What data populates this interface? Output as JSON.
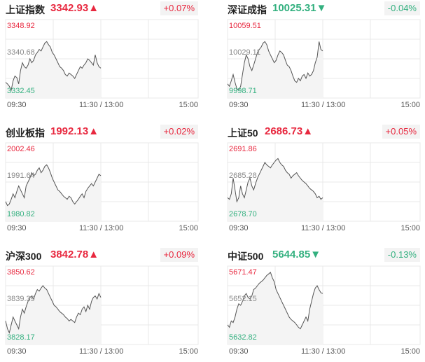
{
  "indices": [
    {
      "name": "上证指数",
      "value": "3342.93",
      "arrow": "▲",
      "dir": "up",
      "pct": "+0.07%",
      "high": "3348.92",
      "mid": "3340.68",
      "low": "3332.45",
      "series": [
        0.2,
        0.18,
        0.15,
        0.1,
        0.22,
        0.28,
        0.26,
        0.18,
        0.35,
        0.45,
        0.4,
        0.38,
        0.42,
        0.5,
        0.45,
        0.48,
        0.55,
        0.58,
        0.62,
        0.6,
        0.65,
        0.7,
        0.72,
        0.68,
        0.65,
        0.58,
        0.55,
        0.5,
        0.45,
        0.4,
        0.38,
        0.35,
        0.3,
        0.28,
        0.32,
        0.3,
        0.28,
        0.25,
        0.3,
        0.35,
        0.4,
        0.38,
        0.42,
        0.45,
        0.5,
        0.48,
        0.45,
        0.42,
        0.55,
        0.45,
        0.4,
        0.38
      ]
    },
    {
      "name": "深证成指",
      "value": "10025.31",
      "arrow": "▼",
      "dir": "down",
      "pct": "-0.04%",
      "high": "10059.51",
      "mid": "10029.11",
      "low": "9998.71",
      "series": [
        0.18,
        0.15,
        0.22,
        0.3,
        0.2,
        0.12,
        0.1,
        0.15,
        0.3,
        0.45,
        0.55,
        0.5,
        0.4,
        0.35,
        0.42,
        0.5,
        0.58,
        0.62,
        0.65,
        0.7,
        0.72,
        0.68,
        0.6,
        0.55,
        0.5,
        0.45,
        0.48,
        0.55,
        0.6,
        0.58,
        0.55,
        0.48,
        0.42,
        0.4,
        0.35,
        0.28,
        0.22,
        0.2,
        0.25,
        0.22,
        0.28,
        0.3,
        0.25,
        0.32,
        0.28,
        0.3,
        0.35,
        0.45,
        0.52,
        0.72,
        0.62,
        0.6
      ]
    },
    {
      "name": "创业板指",
      "value": "1992.13",
      "arrow": "▲",
      "dir": "up",
      "pct": "+0.02%",
      "high": "2002.46",
      "mid": "1991.64",
      "low": "1980.82",
      "series": [
        0.25,
        0.2,
        0.22,
        0.28,
        0.35,
        0.3,
        0.38,
        0.45,
        0.4,
        0.35,
        0.3,
        0.45,
        0.5,
        0.55,
        0.62,
        0.58,
        0.6,
        0.65,
        0.68,
        0.62,
        0.65,
        0.7,
        0.72,
        0.68,
        0.62,
        0.55,
        0.5,
        0.45,
        0.4,
        0.38,
        0.35,
        0.32,
        0.3,
        0.28,
        0.32,
        0.3,
        0.25,
        0.22,
        0.25,
        0.28,
        0.32,
        0.35,
        0.3,
        0.38,
        0.42,
        0.45,
        0.48,
        0.45,
        0.5,
        0.55,
        0.6,
        0.58
      ]
    },
    {
      "name": "上证50",
      "value": "2686.73",
      "arrow": "▲",
      "dir": "up",
      "pct": "+0.05%",
      "high": "2691.86",
      "mid": "2685.28",
      "low": "2678.70",
      "series": [
        0.3,
        0.28,
        0.35,
        0.55,
        0.4,
        0.25,
        0.3,
        0.45,
        0.35,
        0.3,
        0.4,
        0.5,
        0.55,
        0.45,
        0.4,
        0.48,
        0.55,
        0.6,
        0.65,
        0.7,
        0.75,
        0.72,
        0.7,
        0.68,
        0.72,
        0.75,
        0.78,
        0.8,
        0.75,
        0.72,
        0.7,
        0.65,
        0.62,
        0.6,
        0.55,
        0.58,
        0.6,
        0.62,
        0.58,
        0.55,
        0.52,
        0.5,
        0.48,
        0.45,
        0.42,
        0.4,
        0.38,
        0.35,
        0.3,
        0.32,
        0.28,
        0.3
      ]
    },
    {
      "name": "沪深300",
      "value": "3842.78",
      "arrow": "▲",
      "dir": "up",
      "pct": "+0.09%",
      "high": "3850.62",
      "mid": "3839.39",
      "low": "3828.17",
      "series": [
        0.3,
        0.2,
        0.15,
        0.25,
        0.35,
        0.3,
        0.25,
        0.2,
        0.35,
        0.45,
        0.4,
        0.48,
        0.55,
        0.6,
        0.62,
        0.58,
        0.65,
        0.7,
        0.68,
        0.72,
        0.75,
        0.72,
        0.7,
        0.65,
        0.6,
        0.55,
        0.5,
        0.48,
        0.45,
        0.42,
        0.4,
        0.38,
        0.35,
        0.33,
        0.3,
        0.32,
        0.3,
        0.28,
        0.35,
        0.4,
        0.38,
        0.45,
        0.48,
        0.42,
        0.5,
        0.45,
        0.55,
        0.6,
        0.62,
        0.58,
        0.65,
        0.6
      ]
    },
    {
      "name": "中证500",
      "value": "5644.85",
      "arrow": "▼",
      "dir": "down",
      "pct": "-0.13%",
      "high": "5671.47",
      "mid": "5652.15",
      "low": "5632.82",
      "series": [
        0.25,
        0.22,
        0.3,
        0.28,
        0.35,
        0.45,
        0.52,
        0.5,
        0.55,
        0.62,
        0.65,
        0.6,
        0.58,
        0.62,
        0.7,
        0.72,
        0.75,
        0.78,
        0.8,
        0.82,
        0.85,
        0.88,
        0.9,
        0.92,
        0.85,
        0.8,
        0.7,
        0.65,
        0.6,
        0.55,
        0.5,
        0.45,
        0.4,
        0.35,
        0.32,
        0.3,
        0.28,
        0.25,
        0.22,
        0.2,
        0.25,
        0.3,
        0.35,
        0.3,
        0.45,
        0.55,
        0.65,
        0.72,
        0.75,
        0.7,
        0.66,
        0.65
      ]
    }
  ],
  "x_labels": {
    "start": "09:30",
    "middle": "11:30 / 13:00",
    "end": "15:00"
  },
  "colors": {
    "up": "#e8283f",
    "down": "#33b07f",
    "line": "#555555",
    "grid": "#e8e8e8"
  }
}
